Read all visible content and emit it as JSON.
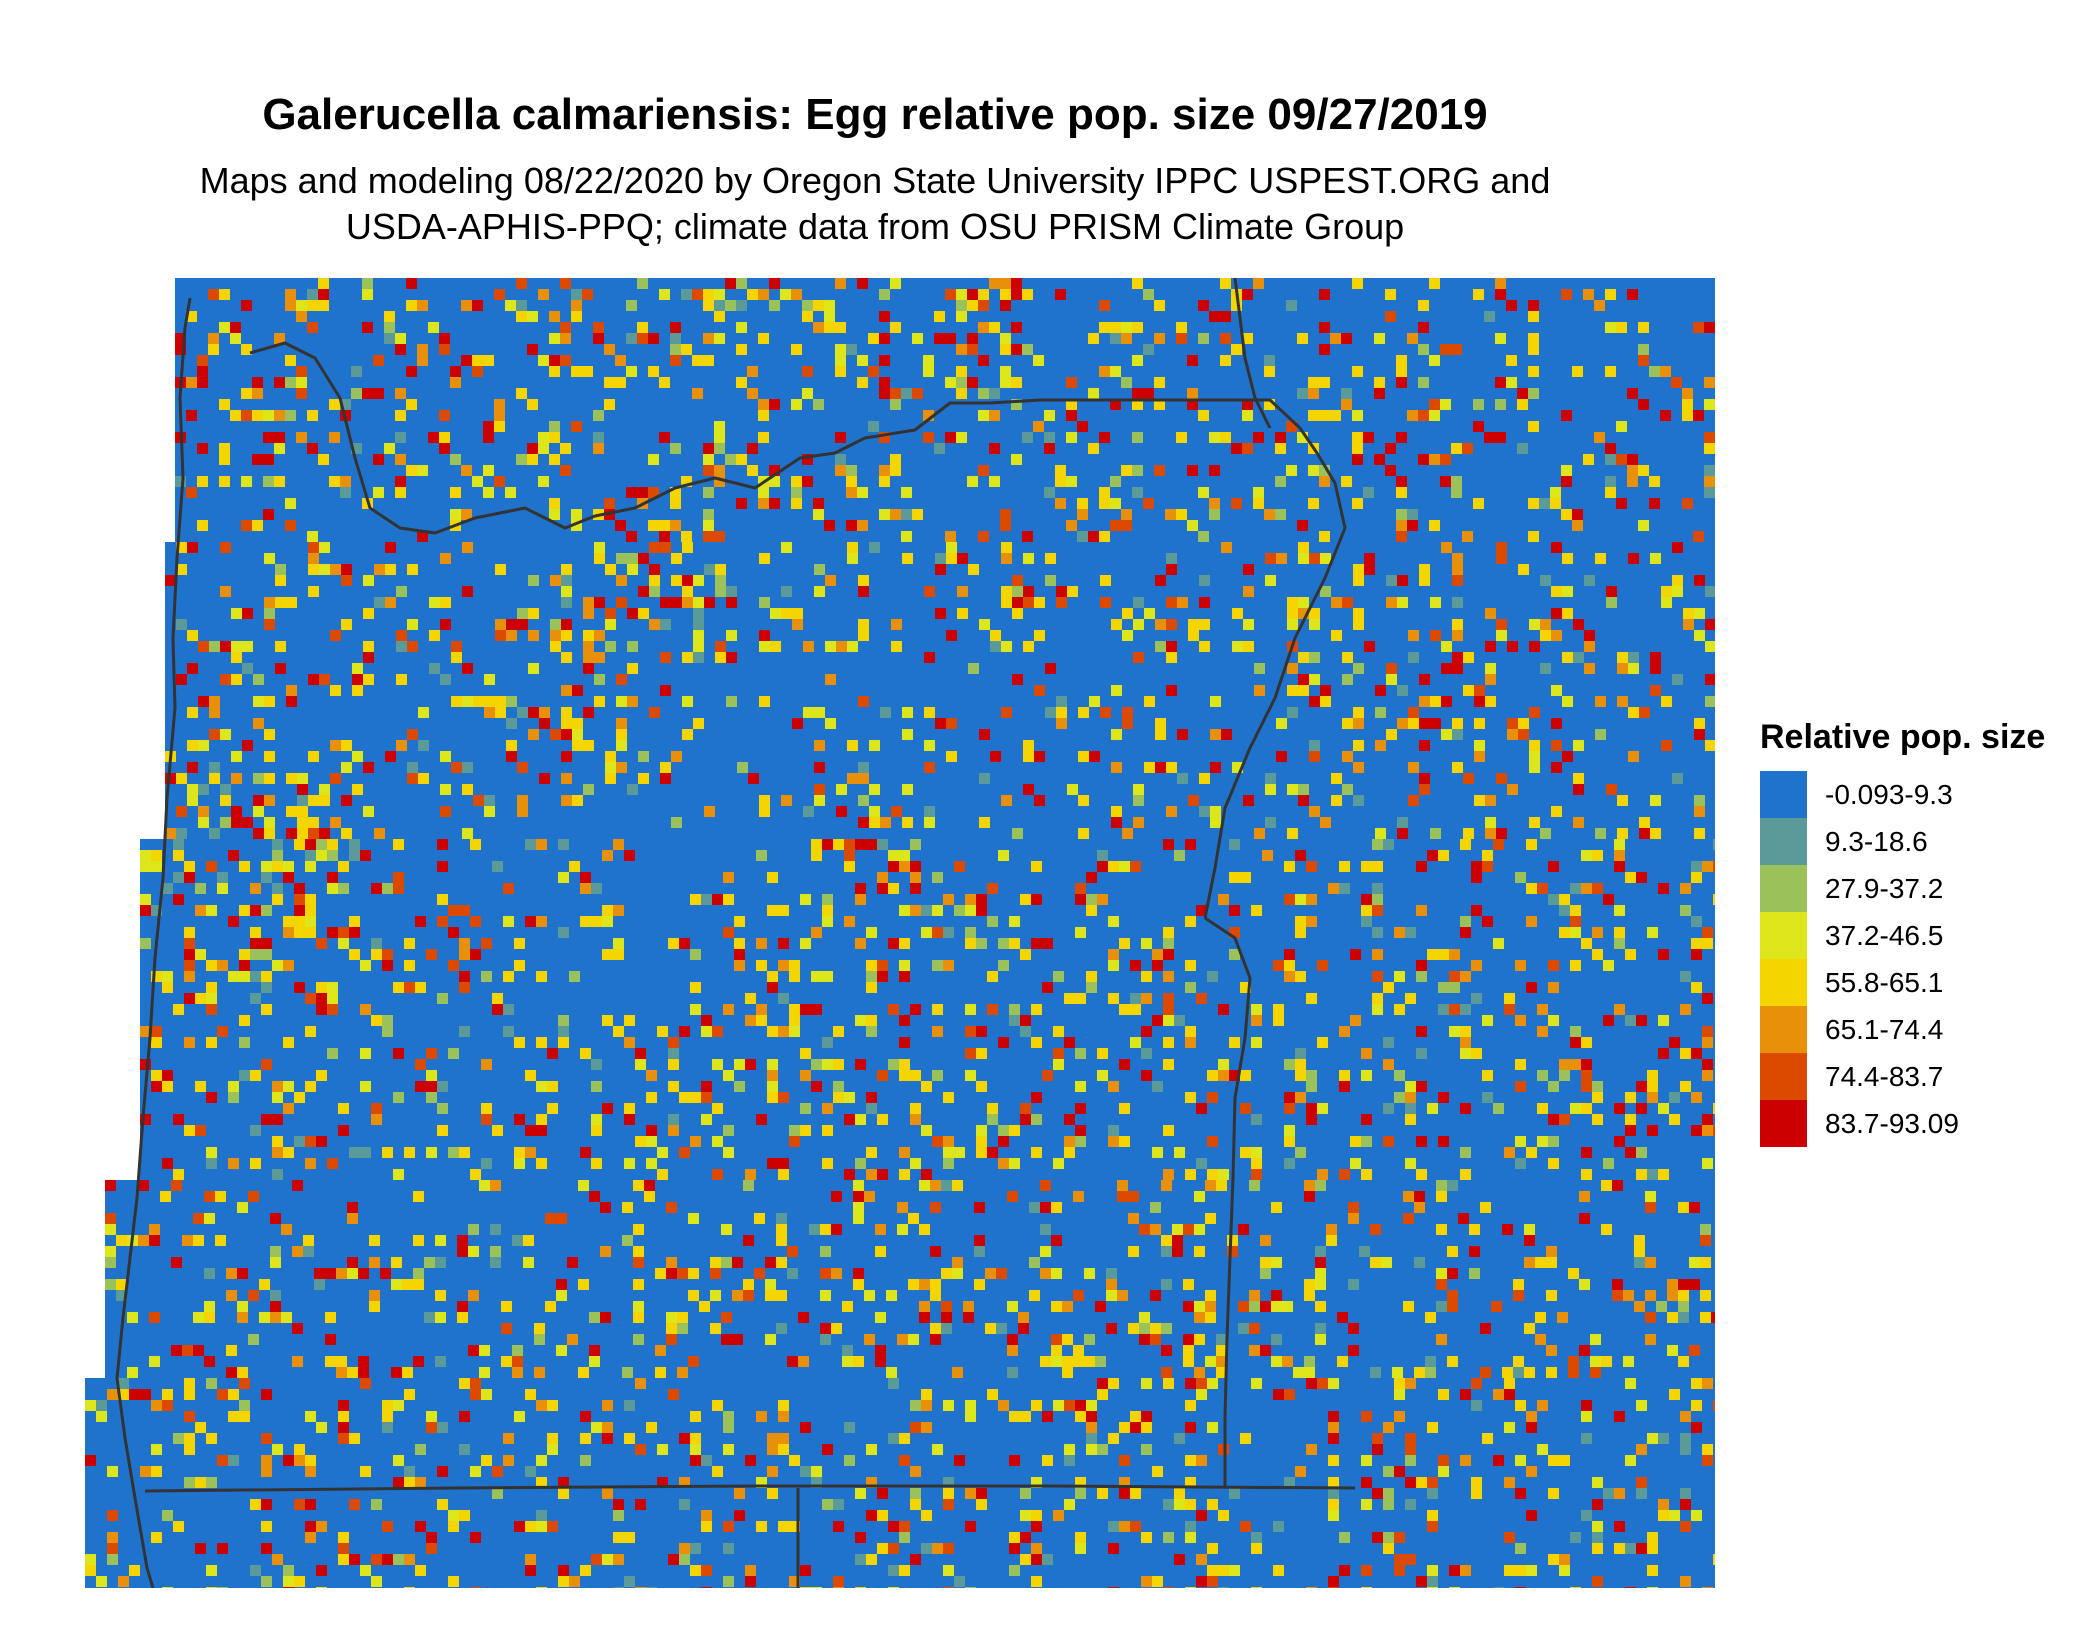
{
  "title": "Galerucella calmariensis: Egg relative pop. size 09/27/2019",
  "subtitle_line1": "Maps and modeling 08/22/2020 by Oregon State University IPPC USPEST.ORG and",
  "subtitle_line2": "USDA-APHIS-PPQ; climate data from OSU PRISM Climate Group",
  "legend": {
    "title": "Relative pop. size",
    "items": [
      {
        "label": "-0.093-9.3",
        "color": "#1f73cc"
      },
      {
        "label": "9.3-18.6",
        "color": "#5a9a99"
      },
      {
        "label": "27.9-37.2",
        "color": "#9bc25a"
      },
      {
        "label": "37.2-46.5",
        "color": "#dce61a"
      },
      {
        "label": "55.8-65.1",
        "color": "#f5d500"
      },
      {
        "label": "65.1-74.4",
        "color": "#e8900a"
      },
      {
        "label": "74.4-83.7",
        "color": "#dc4a00"
      },
      {
        "label": "83.7-93.09",
        "color": "#cc0000"
      }
    ]
  },
  "map": {
    "boundary_color": "#333333"
  }
}
